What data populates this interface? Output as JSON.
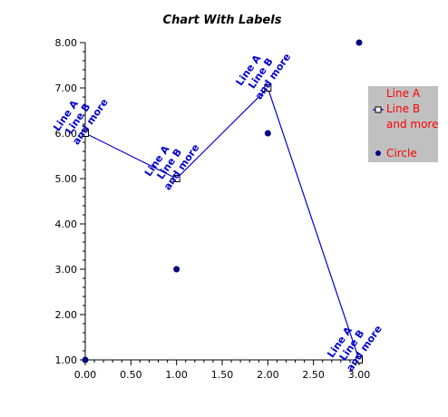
{
  "chart_data": {
    "type": "line",
    "title": "Chart With Labels",
    "xlabel": "",
    "ylabel": "",
    "xlim": [
      0,
      3
    ],
    "ylim": [
      1,
      8
    ],
    "x_ticks": [
      "0.00",
      "0.50",
      "1.00",
      "1.50",
      "2.00",
      "2.50",
      "3.00"
    ],
    "y_ticks": [
      "1.00",
      "2.00",
      "3.00",
      "4.00",
      "5.00",
      "6.00",
      "7.00",
      "8.00"
    ],
    "grid": false,
    "legend_position": "right",
    "series": [
      {
        "name": "Line A\nLine B\nand more",
        "kind": "line",
        "marker": "hollow-square",
        "color": "#0000cc",
        "x": [
          0,
          1,
          2,
          3
        ],
        "y": [
          6,
          5,
          7,
          1
        ],
        "point_label": "Line A\nLine B\nand more"
      },
      {
        "name": "Circle",
        "kind": "scatter",
        "marker": "filled-circle",
        "color": "#000080",
        "x": [
          0,
          1,
          2,
          3
        ],
        "y": [
          1,
          3,
          6,
          8
        ]
      }
    ],
    "colors": {
      "label_text": "#0000cc",
      "legend_text": "#ff0000",
      "legend_bg": "#c0c0c0"
    }
  }
}
